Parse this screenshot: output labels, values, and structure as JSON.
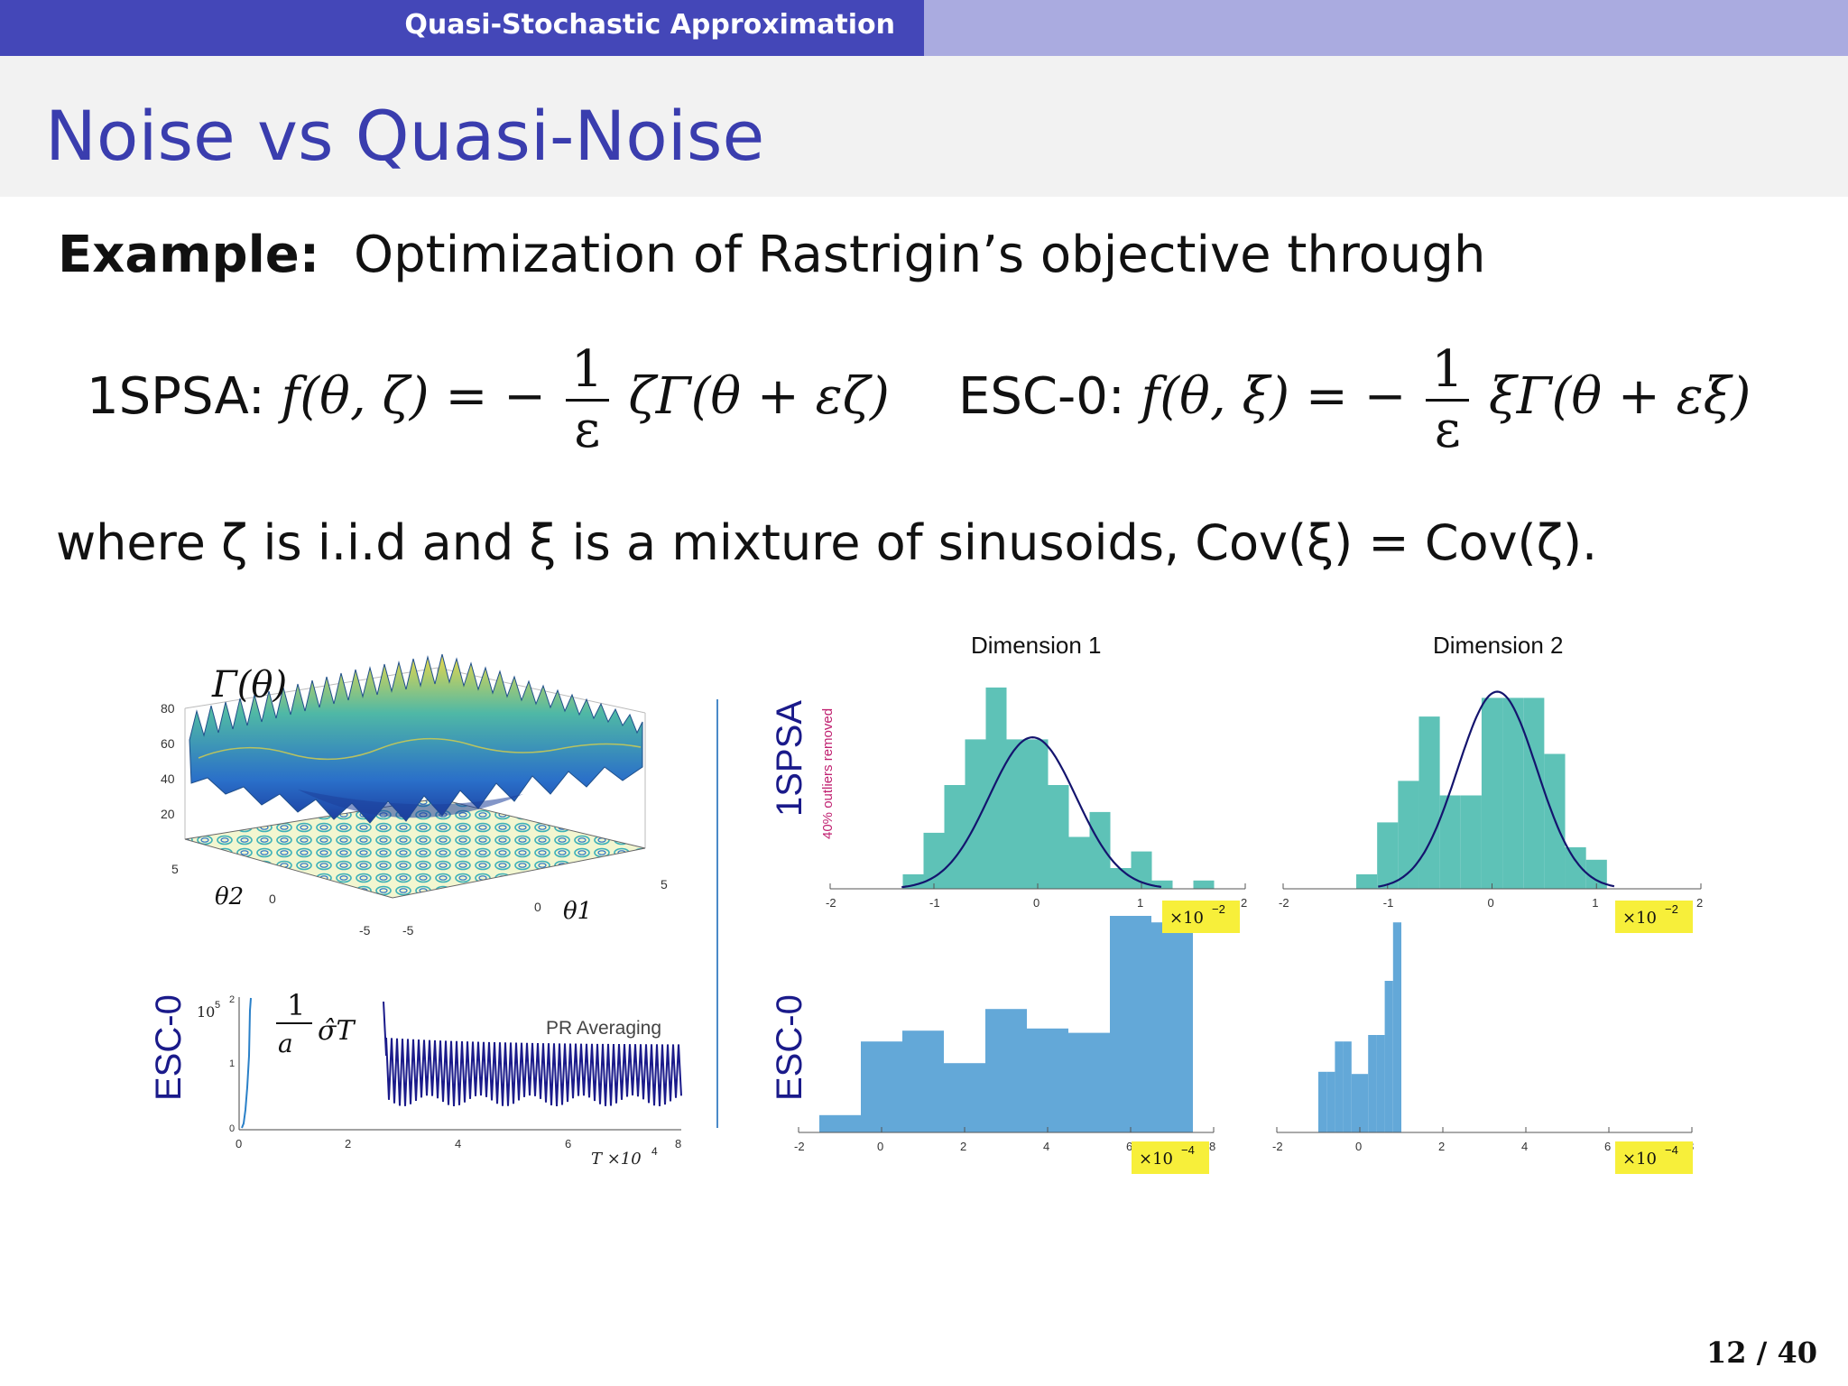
{
  "header": {
    "section": "Quasi-Stochastic Approximation"
  },
  "slide": {
    "title": "Noise vs Quasi-Noise",
    "example_label": "Example:",
    "example_text": "Optimization of Rastrigin’s objective through",
    "formula_left_label": "1SPSA:",
    "formula_left_lhs": "f(θ, ζ) = −",
    "formula_left_rhs": "ζΓ(θ + εζ)",
    "formula_right_label": "ESC-0:",
    "formula_right_lhs": "f(θ, ξ)   = −",
    "formula_right_rhs": "ξΓ(θ + εξ)",
    "frac_num": "1",
    "frac_den": "ε",
    "where_text": "where ζ is i.i.d and ξ is a mixture of sinusoids, Cov(ξ) = Cov(ζ).",
    "page": "12 / 40"
  },
  "surface_plot": {
    "func_label": "Γ(θ)",
    "z_ticks": [
      "80",
      "60",
      "40",
      "20"
    ],
    "theta2_label": "θ2",
    "theta1_label": "θ1",
    "y_ticks": [
      "5",
      "0",
      "-5"
    ],
    "x_ticks": [
      "-5",
      "0",
      "5"
    ]
  },
  "pr_plot": {
    "row_label": "ESC-0",
    "scale_label": "10",
    "scale_exp": "5",
    "y_ticks": [
      "2",
      "1",
      "0"
    ],
    "x_ticks": [
      "0",
      "2",
      "4",
      "6",
      "8"
    ],
    "expr_num": "1",
    "expr_den": "a",
    "expr_sigma": "σ̂T",
    "annotation": "PR Averaging",
    "xlabel": "T ×10",
    "xlabel_exp": "4"
  },
  "hist_panel": {
    "row1_label": "1SPSA",
    "row1_note": "40% outliers removed",
    "row2_label": "ESC-0",
    "col1_title": "Dimension 1",
    "col2_title": "Dimension 2",
    "scale_top": "×10",
    "scale_top_exp": "−2",
    "scale_bottom": "×10",
    "scale_bottom_exp": "−4",
    "x_ticks": [
      "-2",
      "-1",
      "0",
      "1",
      "2"
    ],
    "x_ticks_bottom": [
      "-2",
      "0",
      "2",
      "4",
      "6",
      "8"
    ]
  },
  "chart_data": [
    {
      "type": "bar",
      "title": "Dimension 1",
      "row": "1SPSA",
      "xlim": [
        -2,
        2
      ],
      "bin_width": 0.2,
      "x": [
        -1.2,
        -1.0,
        -0.8,
        -0.6,
        -0.4,
        -0.2,
        0.0,
        0.2,
        0.4,
        0.6,
        0.8,
        1.0,
        1.2,
        1.4,
        1.6
      ],
      "values": [
        0.07,
        0.27,
        0.5,
        0.72,
        0.97,
        0.72,
        0.72,
        0.5,
        0.25,
        0.37,
        0.1,
        0.18,
        0.04,
        0.0,
        0.04
      ],
      "fit_curve": {
        "mean": -0.05,
        "sd": 0.42,
        "peak": 0.73
      }
    },
    {
      "type": "bar",
      "title": "Dimension 2",
      "row": "1SPSA",
      "xlim": [
        -2,
        2
      ],
      "bin_width": 0.2,
      "x": [
        -1.2,
        -1.0,
        -0.8,
        -0.6,
        -0.4,
        -0.2,
        0.0,
        0.2,
        0.4,
        0.6,
        0.8,
        1.0
      ],
      "values": [
        0.07,
        0.32,
        0.52,
        0.83,
        0.45,
        0.45,
        0.92,
        0.92,
        0.92,
        0.65,
        0.2,
        0.14
      ],
      "fit_curve": {
        "mean": 0.05,
        "sd": 0.38,
        "peak": 0.95
      }
    },
    {
      "type": "bar",
      "title": "Dimension 1",
      "row": "ESC-0",
      "xlim": [
        -2,
        8
      ],
      "bin_width": 1.0,
      "x": [
        -1,
        0,
        1,
        2,
        3,
        4,
        5,
        6,
        7
      ],
      "values": [
        0.08,
        0.42,
        0.47,
        0.32,
        0.57,
        0.48,
        0.46,
        1.0,
        0.97
      ]
    },
    {
      "type": "bar",
      "title": "Dimension 2",
      "row": "ESC-0",
      "xlim": [
        -2,
        8
      ],
      "bin_width": 0.2,
      "x": [
        -0.9,
        -0.7,
        -0.5,
        -0.3,
        -0.1,
        0.1,
        0.3,
        0.5,
        0.7,
        0.9
      ],
      "values": [
        0.28,
        0.28,
        0.42,
        0.42,
        0.27,
        0.27,
        0.45,
        0.45,
        0.7,
        0.97
      ]
    }
  ]
}
